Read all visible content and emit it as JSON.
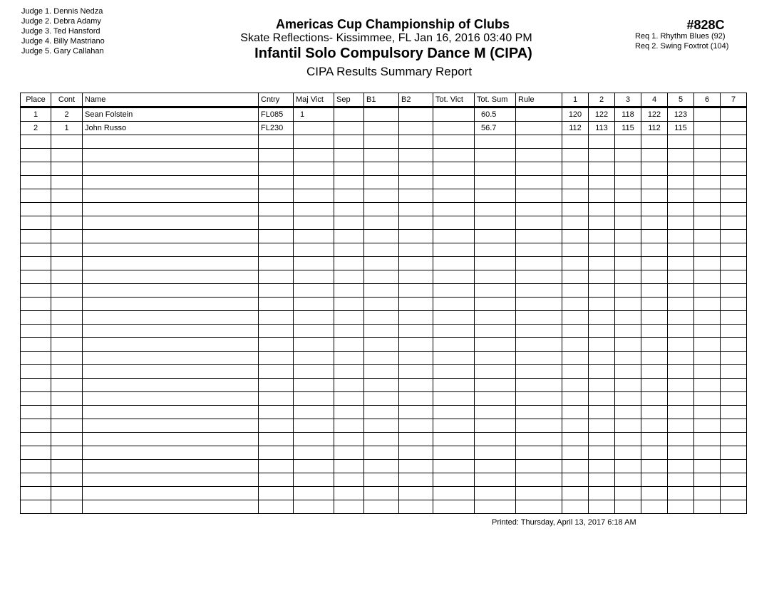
{
  "judges": [
    "Judge  1.  Dennis Nedza",
    "Judge  2.  Debra  Adamy",
    "Judge  3.  Ted Hansford",
    "Judge  4.  Billy Mastriano",
    "Judge  5.  Gary  Callahan"
  ],
  "header": {
    "title": "Americas Cup Championship of Clubs",
    "location": "Skate Reflections- Kissimmee, FL  Jan 16, 2016  03:40 PM",
    "event": "Infantil Solo Compulsory Dance M (CIPA)",
    "report": "CIPA Results Summary Report",
    "code": "#828C"
  },
  "requirements": [
    "Req  1.  Rhythm Blues (92)",
    "Req  2.  Swing Foxtrot (104)"
  ],
  "table": {
    "columns": [
      "Place",
      "Cont",
      "Name",
      "Cntry",
      "Maj Vict",
      "Sep",
      "B1",
      "B2",
      "Tot. Vict",
      "Tot. Sum",
      "Rule",
      "1",
      "2",
      "3",
      "4",
      "5",
      "6",
      "7"
    ],
    "rows": [
      [
        "1",
        "2",
        "Sean Folstein",
        "FL085",
        "1",
        "",
        "",
        "",
        "",
        "60.5",
        "",
        "120",
        "122",
        "118",
        "122",
        "123",
        "",
        ""
      ],
      [
        "2",
        "1",
        "John Russo",
        "FL230",
        "",
        "",
        "",
        "",
        "",
        "56.7",
        "",
        "112",
        "113",
        "115",
        "112",
        "115",
        "",
        ""
      ]
    ]
  },
  "footer": {
    "printed": "Printed:  Thursday, April 13, 2017  6:18 AM"
  }
}
